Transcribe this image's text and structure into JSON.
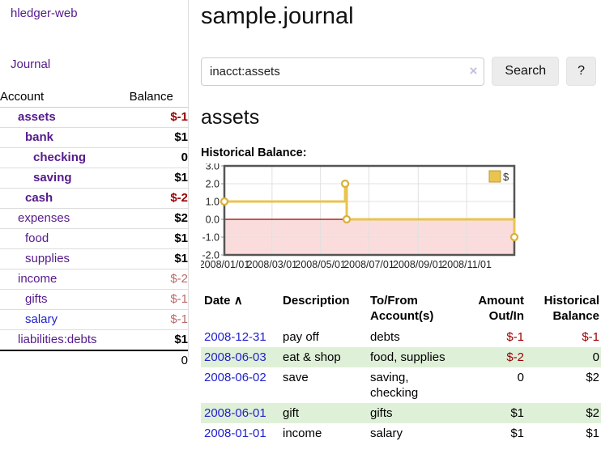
{
  "colors": {
    "link_purple": "#551a8b",
    "link_blue": "#2222cc",
    "negative_strong": "#990000",
    "negative_muted": "#b96a6a",
    "row_stripe_green": "#dff0d8",
    "chart_line_gold": "#e9c44f",
    "chart_negative_region": "#fbdcdc",
    "chart_zero_line": "#990000",
    "chart_border": "#555555"
  },
  "sidebar": {
    "app_title": "hledger-web",
    "nav_journal": "Journal",
    "table": {
      "account_header": "Account",
      "balance_header": "Balance",
      "accounts": [
        {
          "label": "assets",
          "balance": "$-1",
          "depth": "d1",
          "bold": true,
          "value_style": "neg"
        },
        {
          "label": "bank",
          "balance": "$1",
          "depth": "d2",
          "bold": true,
          "value_style": "pos"
        },
        {
          "label": "checking",
          "balance": "0",
          "depth": "d3",
          "bold": true,
          "value_style": "pos"
        },
        {
          "label": "saving",
          "balance": "$1",
          "depth": "d3",
          "bold": true,
          "value_style": "pos"
        },
        {
          "label": "cash",
          "balance": "$-2",
          "depth": "d2",
          "bold": true,
          "value_style": "neg"
        },
        {
          "label": "expenses",
          "balance": "$2",
          "depth": "d1",
          "bold": false,
          "value_style": "pos"
        },
        {
          "label": "food",
          "balance": "$1",
          "depth": "d2",
          "bold": false,
          "value_style": "pos"
        },
        {
          "label": "supplies",
          "balance": "$1",
          "depth": "d2",
          "bold": false,
          "value_style": "pos"
        },
        {
          "label": "income",
          "balance": "$-2",
          "depth": "d1",
          "bold": false,
          "value_style": "negfaded"
        },
        {
          "label": "gifts",
          "balance": "$-1",
          "depth": "d2",
          "bold": false,
          "value_style": "negfaded"
        },
        {
          "label": "salary",
          "balance": "$-1",
          "depth": "d2",
          "bold": false,
          "value_style": "negfaded",
          "link_style": "bluelink"
        },
        {
          "label": "liabilities:debts",
          "balance": "$1",
          "depth": "d1",
          "bold": false,
          "value_style": "pos"
        }
      ],
      "total": "0"
    }
  },
  "main": {
    "title": "sample.journal",
    "search": {
      "value": "inacct:assets",
      "clear_icon": "×",
      "button_label": "Search",
      "help_label": "?"
    },
    "account_heading": "assets",
    "chart_label": "Historical Balance:",
    "transactions": {
      "headers": {
        "date": "Date",
        "sort_arrow": "∧",
        "description": "Description",
        "tofrom": "To/From Account(s)",
        "amount": "Amount Out/In",
        "balance": "Historical Balance"
      },
      "rows": [
        {
          "date": "2008-12-31",
          "description": "pay off",
          "accounts": "debts",
          "amount": "$-1",
          "balance": "$-1",
          "amount_style": "neg",
          "balance_style": "neg"
        },
        {
          "date": "2008-06-03",
          "description": "eat & shop",
          "accounts": "food, supplies",
          "amount": "$-2",
          "balance": "0",
          "amount_style": "neg",
          "balance_style": "pos"
        },
        {
          "date": "2008-06-02",
          "description": "save",
          "accounts": "saving, checking",
          "amount": "0",
          "balance": "$2",
          "amount_style": "pos",
          "balance_style": "pos"
        },
        {
          "date": "2008-06-01",
          "description": "gift",
          "accounts": "gifts",
          "amount": "$1",
          "balance": "$2",
          "amount_style": "pos",
          "balance_style": "pos"
        },
        {
          "date": "2008-01-01",
          "description": "income",
          "accounts": "salary",
          "amount": "$1",
          "balance": "$1",
          "amount_style": "pos",
          "balance_style": "pos"
        }
      ]
    }
  },
  "chart_data": {
    "type": "line",
    "step": true,
    "title": "Historical Balance",
    "series": [
      {
        "name": "$",
        "x": [
          "2008-01-01",
          "2008-06-01",
          "2008-06-03",
          "2008-12-31"
        ],
        "y": [
          1.0,
          2.0,
          0.0,
          -1.0
        ]
      }
    ],
    "x_range": [
      "2008-01-01",
      "2008-12-31"
    ],
    "x_ticks": [
      "2008/01/01",
      "2008/03/01",
      "2008/05/01",
      "2008/07/01",
      "2008/09/01",
      "2008/11/01"
    ],
    "y_ticks": [
      "3.0",
      "2.0",
      "1.0",
      "0.0",
      "-1.0",
      "-2.0"
    ],
    "ylim": [
      -2,
      3
    ],
    "grid": true,
    "legend": {
      "label": "$",
      "position": "top-right"
    }
  }
}
